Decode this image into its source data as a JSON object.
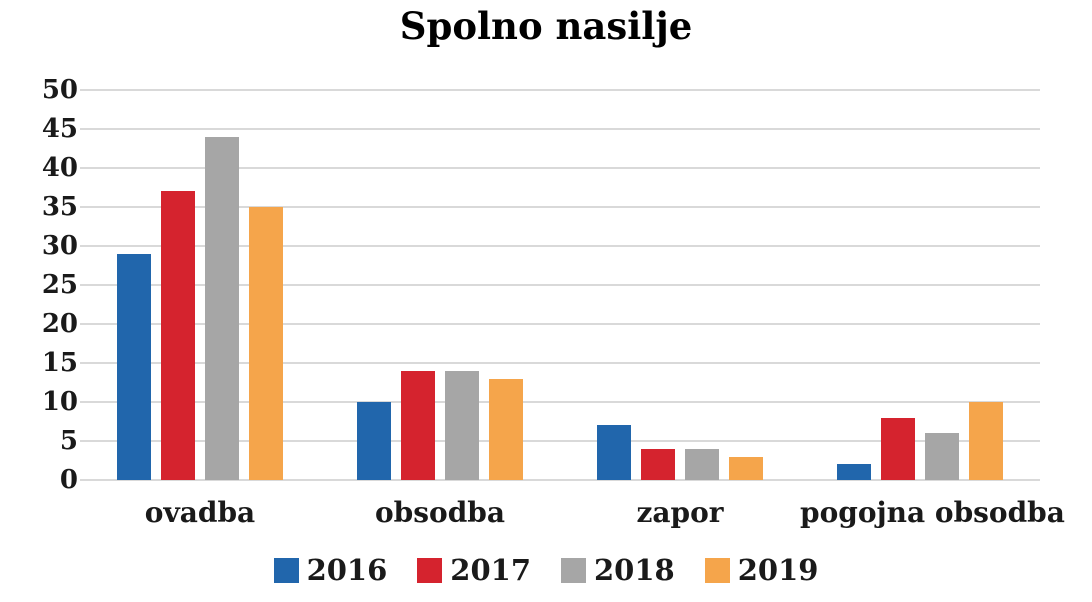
{
  "title": "Spolno nasilje",
  "colors": {
    "grid": "#d9d9d9",
    "text": "#1a1a1a",
    "background": "#ffffff"
  },
  "chart_data": {
    "type": "bar",
    "title": "Spolno nasilje",
    "categories": [
      "ovadba",
      "obsodba",
      "zapor",
      "pogojna obsodba"
    ],
    "series": [
      {
        "name": "2016",
        "color": "#2166ac",
        "values": [
          29,
          10,
          7,
          2
        ]
      },
      {
        "name": "2017",
        "color": "#d5232e",
        "values": [
          37,
          14,
          4,
          8
        ]
      },
      {
        "name": "2018",
        "color": "#a6a6a6",
        "values": [
          44,
          14,
          4,
          6
        ]
      },
      {
        "name": "2019",
        "color": "#f5a54b",
        "values": [
          35,
          13,
          3,
          10
        ]
      }
    ],
    "xlabel": "",
    "ylabel": "",
    "ylim": [
      0,
      50
    ],
    "ytick_step": 5,
    "yticks": [
      "0",
      "5",
      "10",
      "15",
      "20",
      "25",
      "30",
      "35",
      "40",
      "45",
      "50"
    ],
    "grid": true,
    "legend_position": "bottom"
  }
}
